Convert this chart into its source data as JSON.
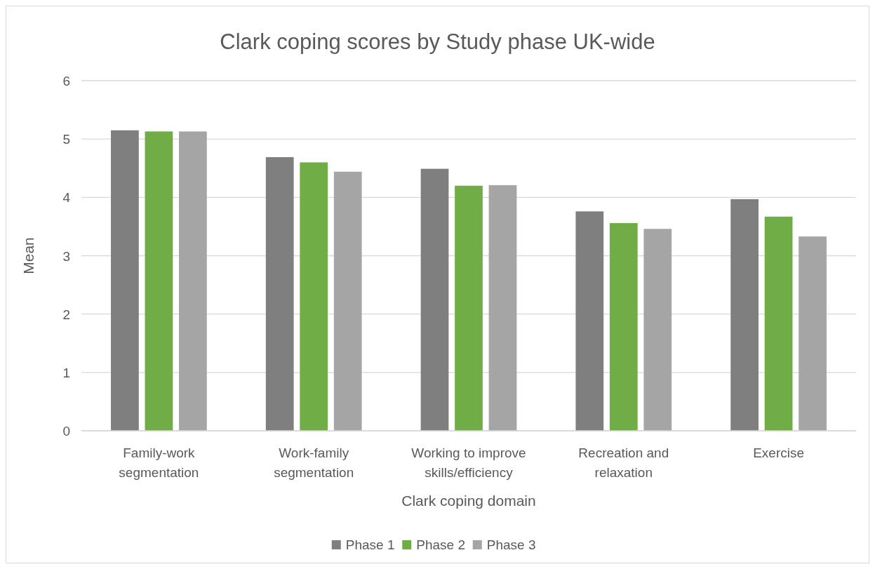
{
  "chart_data": {
    "type": "bar",
    "title": "Clark coping scores by Study phase UK-wide",
    "xlabel": "Clark coping domain",
    "ylabel": "Mean",
    "categories": [
      "Family-work segmentation",
      "Work-family segmentation",
      "Working to improve skills/efficiency",
      "Recreation and relaxation",
      "Exercise"
    ],
    "series": [
      {
        "name": "Phase 1",
        "color": "#7f7f7f",
        "values": [
          5.15,
          4.69,
          4.49,
          3.76,
          3.97
        ]
      },
      {
        "name": "Phase 2",
        "color": "#70ad47",
        "values": [
          5.13,
          4.6,
          4.2,
          3.56,
          3.67
        ]
      },
      {
        "name": "Phase 3",
        "color": "#a5a5a5",
        "values": [
          5.13,
          4.44,
          4.21,
          3.46,
          3.33
        ]
      }
    ],
    "ylim": [
      0,
      6
    ],
    "yticks": [
      0,
      1,
      2,
      3,
      4,
      5,
      6
    ],
    "grid": "y",
    "legend": "bottom"
  }
}
